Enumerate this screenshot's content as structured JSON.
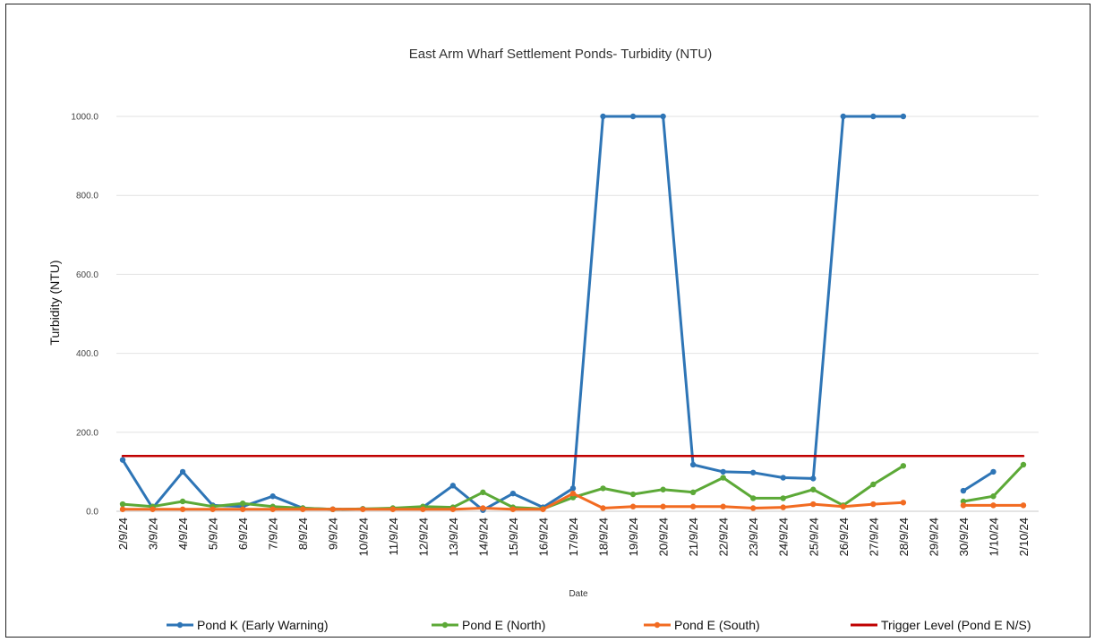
{
  "chart_data": {
    "type": "line",
    "title": "East Arm Wharf Settlement Ponds- Turbidity (NTU)",
    "xlabel": "Date",
    "ylabel": "Turbidity (NTU)",
    "ylim": [
      0,
      1000
    ],
    "yticks": [
      "0.0",
      "200.0",
      "400.0",
      "600.0",
      "800.0",
      "1000.0"
    ],
    "grid": "horizontal",
    "legend_position": "bottom",
    "categories": [
      "2/9/24",
      "3/9/24",
      "4/9/24",
      "5/9/24",
      "6/9/24",
      "7/9/24",
      "8/9/24",
      "9/9/24",
      "10/9/24",
      "11/9/24",
      "12/9/24",
      "13/9/24",
      "14/9/24",
      "15/9/24",
      "16/9/24",
      "17/9/24",
      "18/9/24",
      "19/9/24",
      "20/9/24",
      "21/9/24",
      "22/9/24",
      "23/9/24",
      "24/9/24",
      "25/9/24",
      "26/9/24",
      "27/9/24",
      "28/9/24",
      "29/9/24",
      "30/9/24",
      "1/10/24",
      "2/10/24"
    ],
    "series": [
      {
        "name": "Pond K (Early Warning)",
        "color": "#2E75B6",
        "markers": true,
        "values": [
          130,
          8,
          100,
          15,
          12,
          38,
          8,
          5,
          6,
          6,
          10,
          65,
          3,
          45,
          10,
          58,
          1000,
          1000,
          1000,
          118,
          100,
          98,
          85,
          83,
          1000,
          1000,
          1000,
          null,
          52,
          100,
          null
        ]
      },
      {
        "name": "Pond E (North)",
        "color": "#5CA937",
        "markers": true,
        "values": [
          18,
          12,
          25,
          12,
          20,
          12,
          8,
          5,
          6,
          8,
          12,
          10,
          48,
          10,
          6,
          35,
          58,
          43,
          55,
          48,
          85,
          33,
          33,
          55,
          15,
          68,
          115,
          null,
          25,
          38,
          118
        ]
      },
      {
        "name": "Pond E (South)",
        "color": "#F26B21",
        "markers": true,
        "values": [
          5,
          5,
          5,
          5,
          5,
          5,
          5,
          5,
          5,
          5,
          5,
          5,
          8,
          5,
          5,
          45,
          8,
          12,
          12,
          12,
          12,
          8,
          10,
          18,
          12,
          18,
          22,
          null,
          15,
          15,
          15
        ]
      },
      {
        "name": "Trigger Level (Pond E N/S)",
        "color": "#C00000",
        "markers": false,
        "values": [
          140,
          140,
          140,
          140,
          140,
          140,
          140,
          140,
          140,
          140,
          140,
          140,
          140,
          140,
          140,
          140,
          140,
          140,
          140,
          140,
          140,
          140,
          140,
          140,
          140,
          140,
          140,
          140,
          140,
          140,
          140
        ]
      }
    ]
  }
}
